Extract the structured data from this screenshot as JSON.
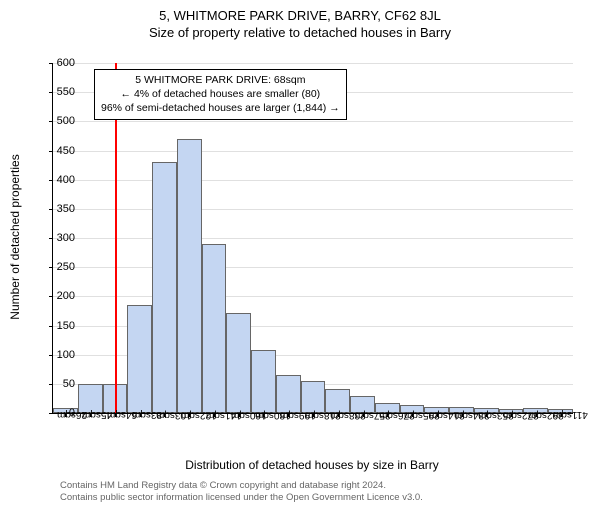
{
  "title_main": "5, WHITMORE PARK DRIVE, BARRY, CF62 8JL",
  "title_sub": "Size of property relative to detached houses in Barry",
  "ylabel": "Number of detached properties",
  "xlabel": "Distribution of detached houses by size in Barry",
  "chart": {
    "type": "histogram",
    "ylim": [
      0,
      600
    ],
    "ytick_step": 50,
    "bar_fill": "#c4d6f2",
    "bar_border": "#666666",
    "grid_color": "#e0e0e0",
    "background_color": "#ffffff",
    "marker_color": "#ff0000",
    "marker_x": 68,
    "x_min": 20,
    "x_max": 420,
    "x_labels": [
      "26sqm",
      "45sqm",
      "64sqm",
      "83sqm",
      "103sqm",
      "122sqm",
      "141sqm",
      "160sqm",
      "180sqm",
      "199sqm",
      "218sqm",
      "238sqm",
      "257sqm",
      "276sqm",
      "295sqm",
      "314sqm",
      "334sqm",
      "353sqm",
      "372sqm",
      "392sqm",
      "411sqm"
    ],
    "values": [
      8,
      50,
      50,
      185,
      430,
      470,
      290,
      172,
      108,
      65,
      55,
      42,
      30,
      18,
      13,
      10,
      10,
      9,
      7,
      8,
      7
    ]
  },
  "info_box": {
    "line1": "5 WHITMORE PARK DRIVE: 68sqm",
    "line2": "← 4% of detached houses are smaller (80)",
    "line3": "96% of semi-detached houses are larger (1,844) →"
  },
  "footer": {
    "line1": "Contains HM Land Registry data © Crown copyright and database right 2024.",
    "line2": "Contains public sector information licensed under the Open Government Licence v3.0."
  }
}
